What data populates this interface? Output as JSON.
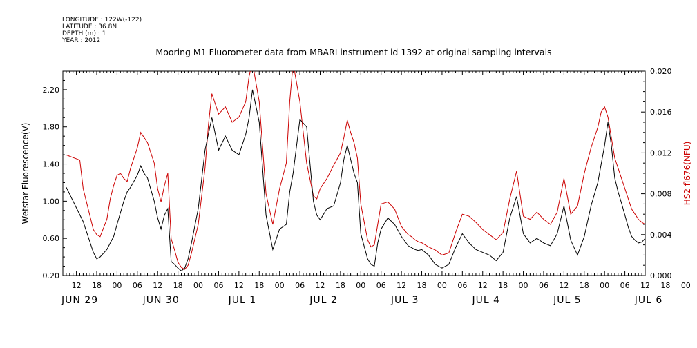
{
  "header": {
    "longitude": "LONGITUDE : 122W(-122)",
    "latitude": "LATITUDE : 36.8N",
    "depth": "DEPTH (m) : 1",
    "year": "YEAR : 2012"
  },
  "chart_data": {
    "type": "line",
    "title": "Mooring M1 Fluorometer data from MBARI instrument id 1392 at original sampling intervals",
    "xlabel": "",
    "x_range_hours_from_jun29_00": [
      8,
      180
    ],
    "x_hour_tick_labels": [
      "12",
      "18",
      "00",
      "06",
      "12",
      "18",
      "00",
      "06",
      "12",
      "18",
      "00",
      "06",
      "12",
      "18",
      "00",
      "06",
      "12",
      "18",
      "00",
      "06",
      "12",
      "18",
      "00",
      "06",
      "12",
      "18",
      "00",
      "06",
      "12",
      "18",
      "00",
      "06",
      "12"
    ],
    "x_date_labels": [
      "JUN 29",
      "JUN 30",
      "JUL 1",
      "JUL 2",
      "JUL 3",
      "JUL 4",
      "JUL 5",
      "JUL 6"
    ],
    "grid": false,
    "legend": "none",
    "left_axis": {
      "label": "Wetstar Fluorescence(V)",
      "ylim": [
        0.2,
        2.4
      ],
      "tick_labels": [
        "0.20",
        "0.60",
        "1.00",
        "1.40",
        "1.80",
        "2.20"
      ],
      "color": "#000000"
    },
    "right_axis": {
      "label": "HS2 fl676(NFU)",
      "ylim": [
        0.0,
        0.02
      ],
      "tick_labels": [
        "0.000",
        "0.004",
        "0.008",
        "0.012",
        "0.016",
        "0.020"
      ],
      "color": "#cc0000"
    },
    "series": [
      {
        "axis": "left",
        "color": "#000000",
        "x": [
          9,
          14,
          17,
          18,
          19,
          21,
          23,
          24,
          26,
          27,
          28,
          30,
          31,
          32,
          33,
          35,
          36,
          37,
          38,
          39,
          40,
          41,
          42,
          43,
          44,
          45,
          46,
          48,
          50,
          52,
          54,
          56,
          58,
          60,
          62,
          63,
          64,
          66,
          68,
          70,
          72,
          74,
          75,
          76,
          78,
          80,
          82,
          83,
          84,
          86,
          88,
          90,
          91,
          92,
          93,
          94,
          95,
          96,
          98,
          99,
          100,
          101,
          102,
          104,
          106,
          108,
          110,
          111,
          112,
          113,
          114,
          115,
          116,
          118,
          120,
          122,
          124,
          126,
          128,
          130,
          132,
          134,
          136,
          138,
          140,
          142,
          144,
          146,
          148,
          150,
          152,
          154,
          156,
          158,
          160,
          162,
          164,
          166,
          167,
          168,
          169,
          170,
          171,
          172,
          173,
          174,
          175,
          176,
          177,
          178,
          179,
          180
        ],
        "y": [
          1.15,
          0.78,
          0.45,
          0.38,
          0.4,
          0.48,
          0.62,
          0.75,
          1.0,
          1.1,
          1.15,
          1.28,
          1.38,
          1.3,
          1.25,
          1.0,
          0.82,
          0.7,
          0.85,
          0.92,
          0.35,
          0.32,
          0.28,
          0.25,
          0.28,
          0.38,
          0.55,
          0.92,
          1.55,
          1.9,
          1.55,
          1.7,
          1.55,
          1.5,
          1.72,
          1.9,
          2.2,
          1.85,
          0.85,
          0.48,
          0.7,
          0.75,
          1.1,
          1.3,
          1.88,
          1.8,
          1.0,
          0.85,
          0.8,
          0.92,
          0.95,
          1.2,
          1.45,
          1.6,
          1.45,
          1.3,
          1.2,
          0.65,
          0.38,
          0.32,
          0.3,
          0.55,
          0.7,
          0.82,
          0.75,
          0.62,
          0.52,
          0.5,
          0.48,
          0.47,
          0.48,
          0.45,
          0.42,
          0.32,
          0.28,
          0.32,
          0.5,
          0.65,
          0.55,
          0.48,
          0.45,
          0.42,
          0.36,
          0.45,
          0.82,
          1.05,
          0.65,
          0.55,
          0.6,
          0.55,
          0.52,
          0.65,
          0.95,
          0.58,
          0.42,
          0.62,
          0.95,
          1.2,
          1.4,
          1.6,
          1.85,
          1.6,
          1.25,
          1.1,
          0.98,
          0.85,
          0.72,
          0.62,
          0.58,
          0.55,
          0.56,
          0.6
        ],
        "y_range": [
          0.2,
          2.4
        ]
      },
      {
        "axis": "right",
        "color": "#cc0000",
        "x": [
          9,
          13,
          14,
          17,
          18,
          19,
          21,
          22,
          23,
          24,
          25,
          26,
          27,
          28,
          30,
          31,
          32,
          33,
          35,
          36,
          37,
          38,
          39,
          40,
          41,
          42,
          43,
          44,
          45,
          46,
          48,
          50,
          51,
          52,
          54,
          56,
          58,
          60,
          62,
          63,
          64,
          66,
          68,
          70,
          72,
          74,
          75,
          76,
          78,
          80,
          82,
          83,
          84,
          86,
          88,
          90,
          91,
          92,
          93,
          94,
          95,
          96,
          98,
          99,
          100,
          101,
          102,
          104,
          106,
          108,
          110,
          111,
          112,
          113,
          114,
          115,
          116,
          118,
          120,
          122,
          124,
          126,
          128,
          130,
          132,
          134,
          136,
          138,
          140,
          142,
          144,
          146,
          148,
          150,
          152,
          154,
          156,
          158,
          160,
          162,
          164,
          166,
          167,
          168,
          169,
          170,
          171,
          172,
          173,
          174,
          175,
          176,
          177,
          178,
          179,
          180
        ],
        "y": [
          0.0118,
          0.0113,
          0.0085,
          0.0045,
          0.004,
          0.0038,
          0.0055,
          0.0075,
          0.0088,
          0.0098,
          0.01,
          0.0095,
          0.0092,
          0.0105,
          0.0125,
          0.014,
          0.0135,
          0.013,
          0.011,
          0.0085,
          0.0072,
          0.0088,
          0.01,
          0.0036,
          0.0025,
          0.0013,
          0.0008,
          0.0006,
          0.001,
          0.0022,
          0.005,
          0.0105,
          0.0148,
          0.0178,
          0.0158,
          0.0165,
          0.015,
          0.0155,
          0.017,
          0.0195,
          0.0208,
          0.017,
          0.008,
          0.005,
          0.0085,
          0.011,
          0.017,
          0.0208,
          0.017,
          0.011,
          0.0078,
          0.0075,
          0.0085,
          0.0095,
          0.0108,
          0.012,
          0.0135,
          0.0152,
          0.014,
          0.013,
          0.0115,
          0.007,
          0.0035,
          0.0028,
          0.003,
          0.005,
          0.007,
          0.0072,
          0.0065,
          0.0048,
          0.004,
          0.0038,
          0.0035,
          0.0033,
          0.0032,
          0.003,
          0.0028,
          0.0025,
          0.002,
          0.0022,
          0.0042,
          0.006,
          0.0058,
          0.0052,
          0.0045,
          0.004,
          0.0035,
          0.0042,
          0.0075,
          0.0102,
          0.0058,
          0.0055,
          0.0062,
          0.0055,
          0.005,
          0.0062,
          0.0095,
          0.006,
          0.0068,
          0.01,
          0.0125,
          0.0145,
          0.016,
          0.0165,
          0.0155,
          0.0135,
          0.0115,
          0.0105,
          0.0095,
          0.0085,
          0.0075,
          0.0065,
          0.006,
          0.0055,
          0.0052,
          0.005
        ],
        "y_range": [
          0.0,
          0.02
        ]
      }
    ]
  }
}
